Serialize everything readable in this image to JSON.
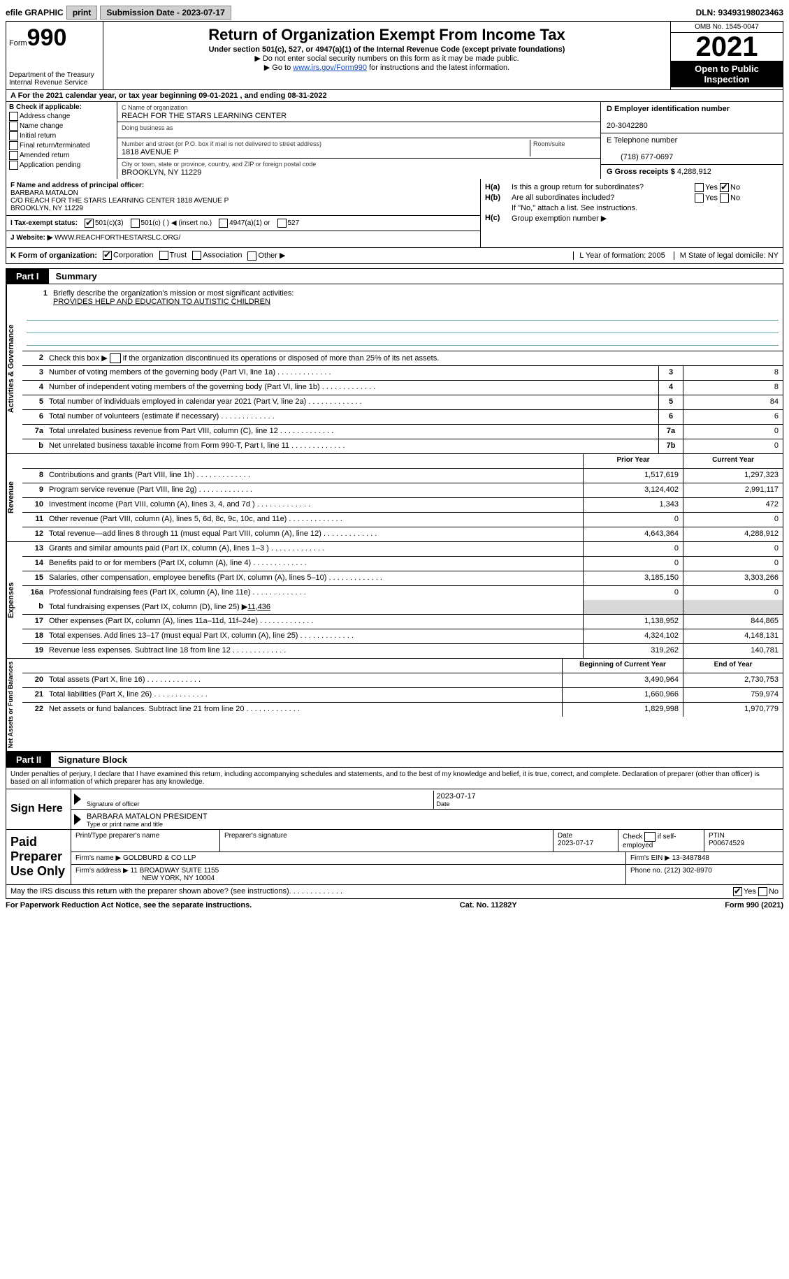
{
  "topbar": {
    "efile": "efile GRAPHIC",
    "print": "print",
    "submission": "Submission Date - 2023-07-17",
    "dln": "DLN: 93493198023463"
  },
  "header": {
    "form_word": "Form",
    "form_num": "990",
    "dept": "Department of the Treasury Internal Revenue Service",
    "title": "Return of Organization Exempt From Income Tax",
    "sub": "Under section 501(c), 527, or 4947(a)(1) of the Internal Revenue Code (except private foundations)",
    "note1": "▶ Do not enter social security numbers on this form as it may be made public.",
    "note2_pre": "▶ Go to ",
    "note2_link": "www.irs.gov/Form990",
    "note2_post": " for instructions and the latest information.",
    "omb": "OMB No. 1545-0047",
    "year": "2021",
    "inspect": "Open to Public Inspection"
  },
  "rowA": "A For the 2021 calendar year, or tax year beginning 09-01-2021    , and ending 08-31-2022",
  "colB": {
    "head": "B Check if applicable:",
    "opts": [
      "Address change",
      "Name change",
      "Initial return",
      "Final return/terminated",
      "Amended return",
      "Application pending"
    ]
  },
  "colC": {
    "name_label": "C Name of organization",
    "name": "REACH FOR THE STARS LEARNING CENTER",
    "dba_label": "Doing business as",
    "addr_label": "Number and street (or P.O. box if mail is not delivered to street address)",
    "room_label": "Room/suite",
    "addr": "1818 AVENUE P",
    "city_label": "City or town, state or province, country, and ZIP or foreign postal code",
    "city": "BROOKLYN, NY  11229"
  },
  "colD": {
    "d_label": "D Employer identification number",
    "ein": "20-3042280",
    "e_label": "E Telephone number",
    "phone": "(718) 677-0697",
    "g_label": "G Gross receipts $",
    "gross": "4,288,912"
  },
  "rowF": {
    "label": "F  Name and address of principal officer:",
    "name": "BARBARA MATALON",
    "co": "C/O REACH FOR THE STARS LEARNING CENTER 1818 AVENUE P",
    "city": "BROOKLYN, NY  11229"
  },
  "rowH": {
    "ha_q": "Is this a group return for subordinates?",
    "hb_q": "Are all subordinates included?",
    "note": "If \"No,\" attach a list. See instructions.",
    "hc": "Group exemption number ▶"
  },
  "rowI": {
    "label": "I    Tax-exempt status:",
    "o1": "501(c)(3)",
    "o2": "501(c) (  ) ◀ (insert no.)",
    "o3": "4947(a)(1) or",
    "o4": "527"
  },
  "rowJ": {
    "label": "J   Website: ▶",
    "url": "WWW.REACHFORTHESTARSLC.ORG/"
  },
  "rowK": {
    "label": "K Form of organization:",
    "opts": [
      "Corporation",
      "Trust",
      "Association",
      "Other ▶"
    ],
    "L": "L Year of formation: 2005",
    "M": "M State of legal domicile: NY"
  },
  "parts": {
    "p1": "Part I",
    "p1t": "Summary",
    "p2": "Part II",
    "p2t": "Signature Block"
  },
  "summary": {
    "mission_label": "Briefly describe the organization's mission or most significant activities:",
    "mission": "PROVIDES HELP AND EDUCATION TO AUTISTIC CHILDREN",
    "l2": "Check this box ▶         if the organization discontinued its operations or disposed of more than 25% of its net assets.",
    "lines_gov": [
      {
        "n": "3",
        "t": "Number of voting members of the governing body (Part VI, line 1a)",
        "box": "3",
        "v": "8"
      },
      {
        "n": "4",
        "t": "Number of independent voting members of the governing body (Part VI, line 1b)",
        "box": "4",
        "v": "8"
      },
      {
        "n": "5",
        "t": "Total number of individuals employed in calendar year 2021 (Part V, line 2a)",
        "box": "5",
        "v": "84"
      },
      {
        "n": "6",
        "t": "Total number of volunteers (estimate if necessary)",
        "box": "6",
        "v": "6"
      },
      {
        "n": "7a",
        "t": "Total unrelated business revenue from Part VIII, column (C), line 12",
        "box": "7a",
        "v": "0"
      },
      {
        "n": "b",
        "t": "Net unrelated business taxable income from Form 990-T, Part I, line 11",
        "box": "7b",
        "v": "0"
      }
    ],
    "head_prior": "Prior Year",
    "head_current": "Current Year",
    "rev": [
      {
        "n": "8",
        "t": "Contributions and grants (Part VIII, line 1h)",
        "p": "1,517,619",
        "c": "1,297,323"
      },
      {
        "n": "9",
        "t": "Program service revenue (Part VIII, line 2g)",
        "p": "3,124,402",
        "c": "2,991,117"
      },
      {
        "n": "10",
        "t": "Investment income (Part VIII, column (A), lines 3, 4, and 7d )",
        "p": "1,343",
        "c": "472"
      },
      {
        "n": "11",
        "t": "Other revenue (Part VIII, column (A), lines 5, 6d, 8c, 9c, 10c, and 11e)",
        "p": "0",
        "c": "0"
      },
      {
        "n": "12",
        "t": "Total revenue—add lines 8 through 11 (must equal Part VIII, column (A), line 12)",
        "p": "4,643,364",
        "c": "4,288,912"
      }
    ],
    "exp": [
      {
        "n": "13",
        "t": "Grants and similar amounts paid (Part IX, column (A), lines 1–3 )",
        "p": "0",
        "c": "0"
      },
      {
        "n": "14",
        "t": "Benefits paid to or for members (Part IX, column (A), line 4)",
        "p": "0",
        "c": "0"
      },
      {
        "n": "15",
        "t": "Salaries, other compensation, employee benefits (Part IX, column (A), lines 5–10)",
        "p": "3,185,150",
        "c": "3,303,266"
      },
      {
        "n": "16a",
        "t": "Professional fundraising fees (Part IX, column (A), line 11e)",
        "p": "0",
        "c": "0"
      }
    ],
    "l16b_pre": "Total fundraising expenses (Part IX, column (D), line 25) ▶",
    "l16b_val": "11,436",
    "exp2": [
      {
        "n": "17",
        "t": "Other expenses (Part IX, column (A), lines 11a–11d, 11f–24e)",
        "p": "1,138,952",
        "c": "844,865"
      },
      {
        "n": "18",
        "t": "Total expenses. Add lines 13–17 (must equal Part IX, column (A), line 25)",
        "p": "4,324,102",
        "c": "4,148,131"
      },
      {
        "n": "19",
        "t": "Revenue less expenses. Subtract line 18 from line 12",
        "p": "319,262",
        "c": "140,781"
      }
    ],
    "head_begin": "Beginning of Current Year",
    "head_end": "End of Year",
    "net": [
      {
        "n": "20",
        "t": "Total assets (Part X, line 16)",
        "p": "3,490,964",
        "c": "2,730,753"
      },
      {
        "n": "21",
        "t": "Total liabilities (Part X, line 26)",
        "p": "1,660,966",
        "c": "759,974"
      },
      {
        "n": "22",
        "t": "Net assets or fund balances. Subtract line 21 from line 20",
        "p": "1,829,998",
        "c": "1,970,779"
      }
    ]
  },
  "sides": {
    "gov": "Activities & Governance",
    "rev": "Revenue",
    "exp": "Expenses",
    "net": "Net Assets or Fund Balances"
  },
  "sigblock": {
    "text": "Under penalties of perjury, I declare that I have examined this return, including accompanying schedules and statements, and to the best of my knowledge and belief, it is true, correct, and complete. Declaration of preparer (other than officer) is based on all information of which preparer has any knowledge.",
    "sign_here": "Sign Here",
    "sig_officer_label": "Signature of officer",
    "date_label": "Date",
    "sig_date": "2023-07-17",
    "name_title": "BARBARA MATALON  PRESIDENT",
    "name_title_label": "Type or print name and title"
  },
  "prep": {
    "title": "Paid Preparer Use Only",
    "h1": "Print/Type preparer's name",
    "h2": "Preparer's signature",
    "h3": "Date",
    "h3v": "2023-07-17",
    "h4": "Check         if self-employed",
    "h5": "PTIN",
    "h5v": "P00674529",
    "firm_name_l": "Firm's name      ▶",
    "firm_name": "GOLDBURD & CO LLP",
    "firm_ein_l": "Firm's EIN ▶",
    "firm_ein": "13-3487848",
    "firm_addr_l": "Firm's address ▶",
    "firm_addr": "11 BROADWAY SUITE 1155",
    "firm_city": "NEW YORK, NY  10004",
    "phone_l": "Phone no.",
    "phone": "(212) 302-8970"
  },
  "footer": {
    "q": "May the IRS discuss this return with the preparer shown above? (see instructions)",
    "paperwork": "For Paperwork Reduction Act Notice, see the separate instructions.",
    "cat": "Cat. No. 11282Y",
    "formref": "Form 990 (2021)"
  }
}
